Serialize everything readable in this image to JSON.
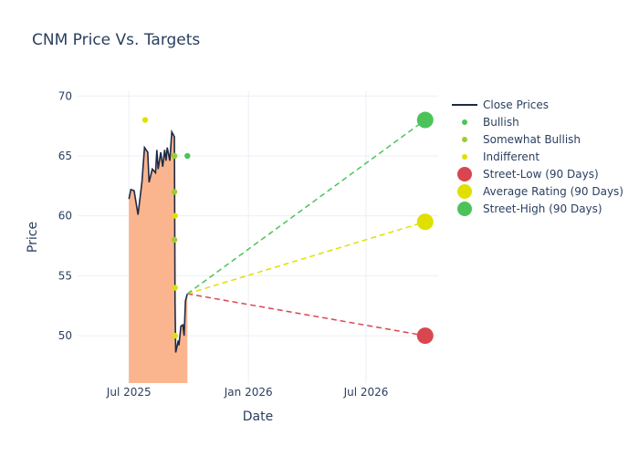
{
  "chart_data": {
    "type": "line",
    "title": "CNM Price Vs. Targets",
    "xlabel": "Date",
    "ylabel": "Price",
    "xlim": [
      "2025-04-13",
      "2026-10-20"
    ],
    "ylim": [
      46.05,
      70.4
    ],
    "x_ticks": [
      {
        "date": "2025-07-01",
        "label": "Jul 2025"
      },
      {
        "date": "2026-01-01",
        "label": "Jan 2026"
      },
      {
        "date": "2026-07-01",
        "label": "Jul 2026"
      }
    ],
    "y_ticks": [
      50,
      55,
      60,
      65,
      70
    ],
    "grid": true,
    "legend_position": "right",
    "colors": {
      "close": "#1f2a44",
      "fill": "#f9a87a",
      "bullish": "#4cc35a",
      "somewhat_bullish": "#9acd32",
      "indifferent": "#e0e000",
      "low": "#d9464f",
      "avg": "#e0e000",
      "high": "#4cc35a",
      "grid": "#ebeff5"
    },
    "close_prices": {
      "name": "Close Prices",
      "x": [
        "2025-07-01",
        "2025-07-04",
        "2025-07-09",
        "2025-07-15",
        "2025-07-21",
        "2025-07-25",
        "2025-07-30",
        "2025-08-01",
        "2025-08-06",
        "2025-08-11",
        "2025-08-13",
        "2025-08-15",
        "2025-08-19",
        "2025-08-22",
        "2025-08-25",
        "2025-08-27",
        "2025-08-29",
        "2025-09-02",
        "2025-09-05",
        "2025-09-09",
        "2025-09-10",
        "2025-09-11",
        "2025-09-15",
        "2025-09-16",
        "2025-09-19",
        "2025-09-22",
        "2025-09-24",
        "2025-09-26",
        "2025-09-29"
      ],
      "y": [
        61.4,
        62.2,
        62.1,
        60.1,
        62.8,
        65.7,
        65.3,
        62.8,
        63.9,
        63.6,
        65.5,
        63.9,
        65.3,
        64.1,
        65.5,
        64.6,
        65.7,
        64.6,
        67.0,
        66.6,
        52.7,
        48.6,
        49.6,
        49.2,
        50.8,
        50.9,
        50.0,
        52.9,
        53.5
      ]
    },
    "ratings": [
      {
        "name": "Bullish",
        "x": [
          "2025-09-29",
          "2025-09-09"
        ],
        "y": [
          65,
          65
        ]
      },
      {
        "name": "Somewhat Bullish",
        "x": [
          "2025-09-09",
          "2025-09-09",
          "2025-09-09"
        ],
        "y": [
          65,
          62,
          58
        ]
      },
      {
        "name": "Indifferent",
        "x": [
          "2025-07-26",
          "2025-09-10",
          "2025-09-10",
          "2025-09-10"
        ],
        "y": [
          68,
          60,
          54,
          50
        ]
      }
    ],
    "targets": [
      {
        "name": "Street-Low (90 Days)",
        "x": "2026-09-30",
        "y": 50
      },
      {
        "name": "Average Rating (90 Days)",
        "x": "2026-09-30",
        "y": 59.5
      },
      {
        "name": "Street-High (90 Days)",
        "x": "2026-09-30",
        "y": 68
      }
    ]
  }
}
